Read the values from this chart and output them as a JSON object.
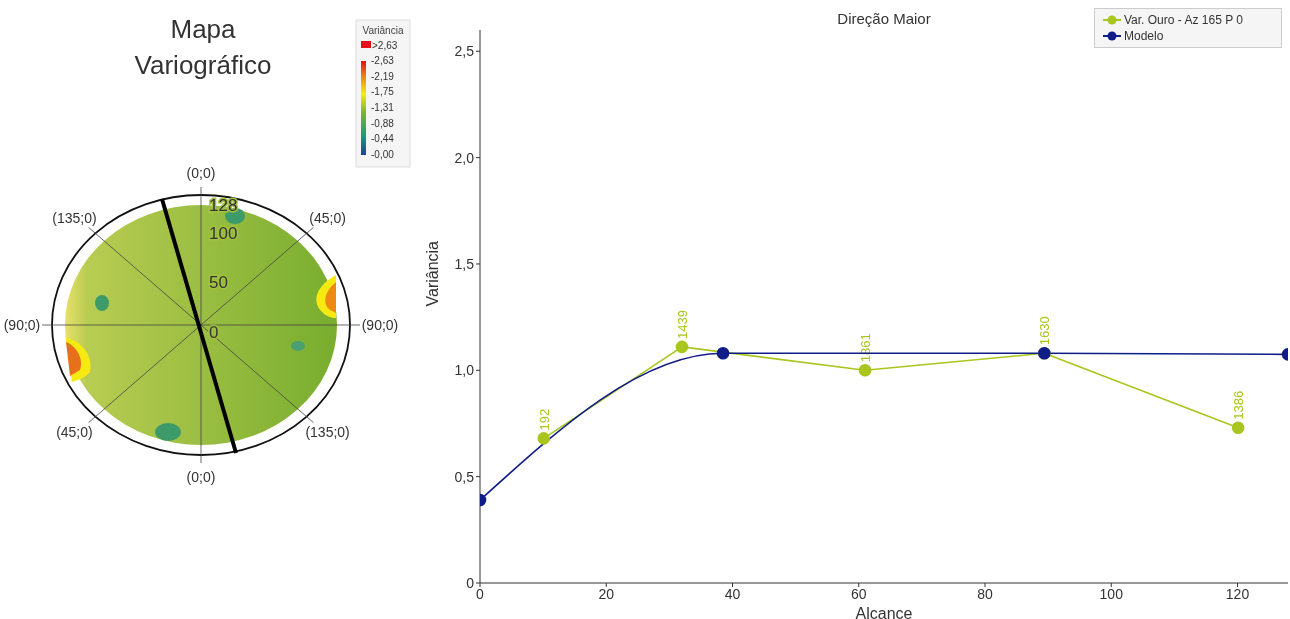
{
  "chart_data": [
    {
      "type": "other",
      "title": "Mapa Variográfico",
      "legend_title": "Variância",
      "categories": [
        "(0;0)",
        "(45;0)",
        "(90;0)",
        "(135;0)",
        "(0;0)",
        "(45;0)",
        "(90;0)",
        "(135;0)"
      ],
      "annotations": [
        ">2,63",
        "-2,63",
        "-2,19",
        "-1,75",
        "-1,31",
        "-0,88",
        "-0,44",
        "-0,00",
        "128",
        "100",
        "50",
        "0"
      ]
    },
    {
      "type": "line",
      "title": "Direção Maior",
      "xlabel": "Alcance",
      "ylabel": "Variância",
      "xlim": [
        0,
        128
      ],
      "xticks": [
        0,
        20,
        40,
        60,
        80,
        100,
        120
      ],
      "ylim": [
        0,
        2.6
      ],
      "yticks": [
        0,
        {
          "value": 0.5,
          "label": "0,5"
        },
        {
          "value": 1,
          "label": "1,0"
        },
        {
          "value": 1.5,
          "label": "1,5"
        },
        {
          "value": 2,
          "label": "2,0"
        },
        {
          "value": 2.5,
          "label": "2,5"
        }
      ],
      "legend": "top right",
      "marker": "circle",
      "annotations": [
        {
          "text": "192",
          "x": 10.1,
          "y": 0.68
        },
        {
          "text": "1439",
          "x": 32,
          "y": 1.11
        },
        {
          "text": "1861",
          "x": 61,
          "y": 1.0
        },
        {
          "text": "1630",
          "x": 89.4,
          "y": 1.08
        },
        {
          "text": "1386",
          "x": 120.1,
          "y": 0.73
        }
      ],
      "series": [
        {
          "name": "Var. Ouro - Az 165 P 0",
          "color": "#a8c61e",
          "x": [
            10.1,
            32,
            61,
            89.4,
            120.1
          ],
          "values": [
            0.68,
            1.11,
            1.0,
            1.08,
            0.73
          ]
        },
        {
          "name": "Modelo",
          "color": "#101d88",
          "x": [
            0,
            38.5,
            89.4,
            128
          ],
          "values": [
            0.39,
            1.08,
            1.08,
            1.075
          ]
        }
      ]
    }
  ]
}
